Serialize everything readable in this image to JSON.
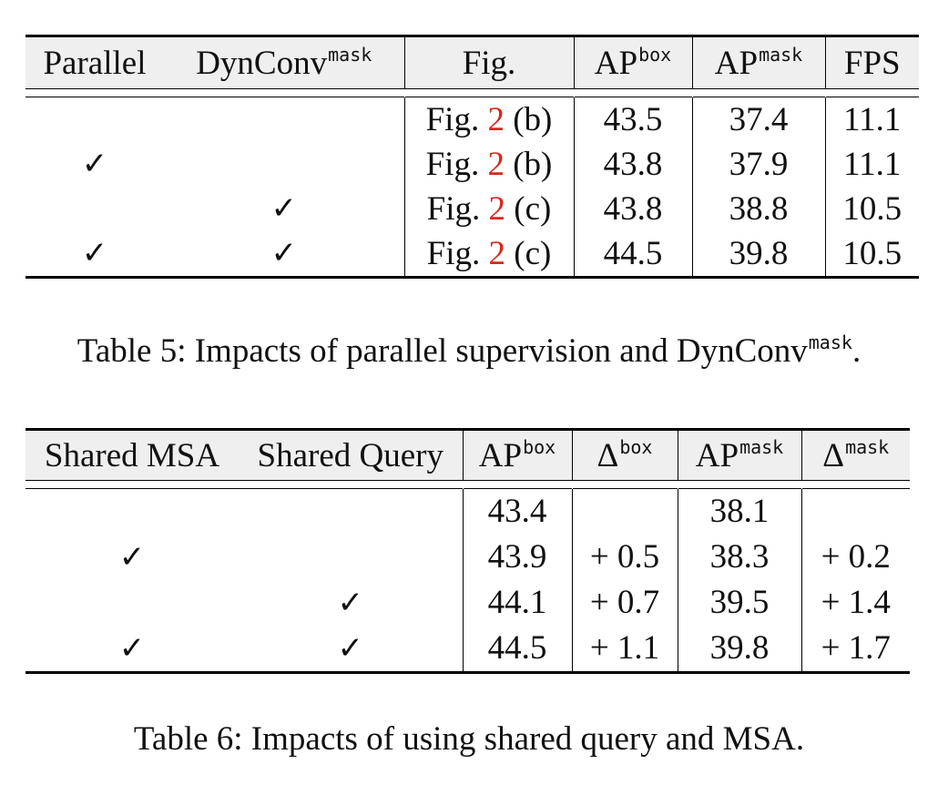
{
  "table5": {
    "headers": {
      "parallel": "Parallel",
      "dynconv_base": "DynConv",
      "dynconv_sup": "mask",
      "fig": "Fig.",
      "apbox_base": "AP",
      "apbox_sup": "box",
      "apmask_base": "AP",
      "apmask_sup": "mask",
      "fps": "FPS"
    },
    "rows": [
      {
        "parallel": "",
        "dynconv": "",
        "fig_prefix": "Fig.",
        "fig_ref": "2",
        "fig_suffix": "(b)",
        "ap_box": "43.5",
        "ap_mask": "37.4",
        "fps": "11.1"
      },
      {
        "parallel": "✓",
        "dynconv": "",
        "fig_prefix": "Fig.",
        "fig_ref": "2",
        "fig_suffix": "(b)",
        "ap_box": "43.8",
        "ap_mask": "37.9",
        "fps": "11.1"
      },
      {
        "parallel": "",
        "dynconv": "✓",
        "fig_prefix": "Fig.",
        "fig_ref": "2",
        "fig_suffix": "(c)",
        "ap_box": "43.8",
        "ap_mask": "38.8",
        "fps": "10.5"
      },
      {
        "parallel": "✓",
        "dynconv": "✓",
        "fig_prefix": "Fig.",
        "fig_ref": "2",
        "fig_suffix": "(c)",
        "ap_box": "44.5",
        "ap_mask": "39.8",
        "fps": "10.5"
      }
    ],
    "caption_text": "Table 5: Impacts of parallel supervision and DynConv",
    "caption_sup": "mask",
    "caption_end": "."
  },
  "table6": {
    "headers": {
      "shared_msa": "Shared MSA",
      "shared_query": "Shared Query",
      "apbox_base": "AP",
      "apbox_sup": "box",
      "dbox_base": "Δ",
      "dbox_sup": "box",
      "apmask_base": "AP",
      "apmask_sup": "mask",
      "dmask_base": "Δ",
      "dmask_sup": "mask"
    },
    "rows": [
      {
        "shared_msa": "",
        "shared_query": "",
        "ap_box": "43.4",
        "d_box": "",
        "ap_mask": "38.1",
        "d_mask": ""
      },
      {
        "shared_msa": "✓",
        "shared_query": "",
        "ap_box": "43.9",
        "d_box": "+ 0.5",
        "ap_mask": "38.3",
        "d_mask": "+ 0.2"
      },
      {
        "shared_msa": "",
        "shared_query": "✓",
        "ap_box": "44.1",
        "d_box": "+ 0.7",
        "ap_mask": "39.5",
        "d_mask": "+ 1.4"
      },
      {
        "shared_msa": "✓",
        "shared_query": "✓",
        "ap_box": "44.5",
        "d_box": "+ 1.1",
        "ap_mask": "39.8",
        "d_mask": "+ 1.7"
      }
    ],
    "caption": "Table 6: Impacts of using shared query and MSA."
  }
}
